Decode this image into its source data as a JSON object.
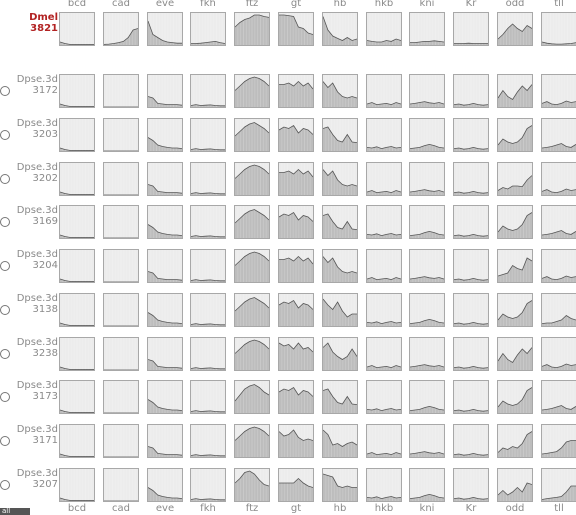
{
  "columns": [
    "bcd",
    "cad",
    "eve",
    "fkh",
    "ftz",
    "gt",
    "hb",
    "hkb",
    "kni",
    "Kr",
    "odd",
    "tll"
  ],
  "reference": {
    "line1": "Dmel",
    "line2": "3821"
  },
  "rows": [
    {
      "line1": "Dpse.3d",
      "line2": "3172"
    },
    {
      "line1": "Dpse.3d",
      "line2": "3203"
    },
    {
      "line1": "Dpse.3d",
      "line2": "3202"
    },
    {
      "line1": "Dpse.3d",
      "line2": "3169"
    },
    {
      "line1": "Dpse.3d",
      "line2": "3204"
    },
    {
      "line1": "Dpse.3d",
      "line2": "3138"
    },
    {
      "line1": "Dpse.3d",
      "line2": "3238"
    },
    {
      "line1": "Dpse.3d",
      "line2": "3173"
    },
    {
      "line1": "Dpse.3d",
      "line2": "3171"
    },
    {
      "line1": "Dpse.3d",
      "line2": "3207"
    }
  ],
  "footer_button": "all",
  "colors": {
    "fill": "#bdbdbd",
    "stroke": "#555555",
    "cell_bg": "#ececec",
    "reference_label": "#b22222"
  },
  "profiles": {
    "bcd": [
      [
        0.1,
        0.05,
        0.02,
        0.02,
        0.02,
        0.02,
        0.02,
        0.02
      ]
    ],
    "cad": [
      [
        0.02,
        0.03,
        0.05,
        0.08,
        0.12,
        0.25,
        0.5,
        0.55
      ],
      [
        0.0,
        0.0,
        0.0,
        0.0,
        0.0,
        0.0,
        0.0,
        0.0
      ]
    ],
    "eve": [
      [
        0.8,
        0.35,
        0.25,
        0.15,
        0.1,
        0.08,
        0.06,
        0.06
      ],
      [
        0.35,
        0.3,
        0.12,
        0.1,
        0.08,
        0.08,
        0.08,
        0.06
      ],
      [
        0.45,
        0.35,
        0.2,
        0.15,
        0.12,
        0.1,
        0.1,
        0.08
      ]
    ],
    "fkh": [
      [
        0.05,
        0.05,
        0.06,
        0.08,
        0.1,
        0.12,
        0.08,
        0.05
      ],
      [
        0.05,
        0.08,
        0.05,
        0.06,
        0.07,
        0.05,
        0.04,
        0.04
      ]
    ],
    "ftz": [
      [
        0.6,
        0.75,
        0.85,
        0.9,
        1.0,
        1.0,
        0.95,
        0.92
      ],
      [
        0.55,
        0.7,
        0.85,
        0.95,
        1.0,
        0.95,
        0.85,
        0.7
      ],
      [
        0.5,
        0.65,
        0.8,
        0.9,
        0.95,
        0.85,
        0.75,
        0.6
      ]
    ],
    "gt": [
      [
        1.0,
        1.0,
        0.98,
        0.95,
        0.6,
        0.55,
        0.4,
        0.35
      ],
      [
        0.75,
        0.75,
        0.8,
        0.7,
        0.85,
        0.7,
        0.8,
        0.6
      ],
      [
        0.7,
        0.8,
        0.75,
        0.85,
        0.6,
        0.75,
        0.7,
        0.55
      ]
    ],
    "hb": [
      [
        0.95,
        0.5,
        0.3,
        0.22,
        0.15,
        0.25,
        0.15,
        0.2
      ],
      [
        0.85,
        0.65,
        0.8,
        0.5,
        0.35,
        0.3,
        0.35,
        0.3
      ],
      [
        0.75,
        0.8,
        0.55,
        0.35,
        0.3,
        0.55,
        0.3,
        0.28
      ]
    ],
    "hkb": [
      [
        0.15,
        0.12,
        0.1,
        0.1,
        0.15,
        0.12,
        0.2,
        0.15
      ],
      [
        0.1,
        0.15,
        0.08,
        0.1,
        0.12,
        0.08,
        0.15,
        0.1
      ],
      [
        0.12,
        0.1,
        0.14,
        0.08,
        0.12,
        0.15,
        0.1,
        0.12
      ]
    ],
    "kni": [
      [
        0.08,
        0.08,
        0.1,
        0.12,
        0.12,
        0.14,
        0.12,
        0.1
      ],
      [
        0.1,
        0.12,
        0.15,
        0.18,
        0.14,
        0.12,
        0.15,
        0.1
      ],
      [
        0.08,
        0.1,
        0.12,
        0.18,
        0.22,
        0.18,
        0.12,
        0.1
      ]
    ],
    "Kr": [
      [
        0.05,
        0.05,
        0.05,
        0.06,
        0.05,
        0.05,
        0.05,
        0.05
      ],
      [
        0.08,
        0.1,
        0.06,
        0.08,
        0.12,
        0.08,
        0.06,
        0.08
      ]
    ],
    "odd": [
      [
        0.2,
        0.35,
        0.55,
        0.7,
        0.55,
        0.45,
        0.65,
        0.55
      ],
      [
        0.3,
        0.55,
        0.35,
        0.25,
        0.5,
        0.7,
        0.55,
        0.75
      ],
      [
        0.2,
        0.4,
        0.3,
        0.25,
        0.3,
        0.45,
        0.75,
        0.85
      ]
    ],
    "tll": [
      [
        0.1,
        0.06,
        0.04,
        0.03,
        0.03,
        0.04,
        0.05,
        0.08
      ],
      [
        0.12,
        0.18,
        0.1,
        0.08,
        0.12,
        0.2,
        0.15,
        0.18
      ],
      [
        0.1,
        0.12,
        0.15,
        0.2,
        0.25,
        0.15,
        0.12,
        0.22
      ]
    ]
  },
  "special": {
    "odd.3": [
      0.15,
      0.25,
      0.2,
      0.3,
      0.3,
      0.28,
      0.5,
      0.65
    ],
    "odd.5": [
      0.2,
      0.25,
      0.3,
      0.55,
      0.45,
      0.4,
      0.8,
      0.7
    ],
    "odd.9": [
      0.15,
      0.3,
      0.25,
      0.35,
      0.3,
      0.45,
      0.75,
      0.85
    ],
    "odd.10": [
      0.2,
      0.35,
      0.2,
      0.3,
      0.45,
      0.3,
      0.6,
      0.55
    ],
    "tll.9": [
      0.1,
      0.12,
      0.15,
      0.18,
      0.3,
      0.5,
      0.55,
      0.55
    ],
    "tll.10": [
      0.05,
      0.08,
      0.1,
      0.12,
      0.15,
      0.3,
      0.5,
      0.5
    ],
    "tll.6": [
      0.08,
      0.1,
      0.1,
      0.15,
      0.2,
      0.35,
      0.25,
      0.2
    ],
    "hb.6": [
      0.9,
      0.7,
      0.55,
      0.8,
      0.5,
      0.3,
      0.4,
      0.4
    ],
    "hb.7": [
      0.75,
      0.9,
      0.6,
      0.45,
      0.35,
      0.45,
      0.7,
      0.45
    ],
    "hb.9": [
      0.9,
      0.75,
      0.4,
      0.45,
      0.35,
      0.45,
      0.5,
      0.4
    ],
    "hb.10": [
      0.9,
      0.85,
      0.8,
      0.5,
      0.45,
      0.5,
      0.45,
      0.45
    ],
    "ftz.8": [
      0.4,
      0.6,
      0.8,
      0.9,
      0.95,
      0.85,
      0.7,
      0.6
    ],
    "ftz.10": [
      0.6,
      0.75,
      0.95,
      1.0,
      0.9,
      0.7,
      0.55,
      0.5
    ],
    "gt.7": [
      0.9,
      0.8,
      0.85,
      0.7,
      0.9,
      0.7,
      0.75,
      0.6
    ],
    "gt.9": [
      0.85,
      0.7,
      0.75,
      0.9,
      0.65,
      0.55,
      0.6,
      0.55
    ],
    "gt.10": [
      0.6,
      0.6,
      0.6,
      0.6,
      0.75,
      0.6,
      0.5,
      0.45
    ]
  }
}
